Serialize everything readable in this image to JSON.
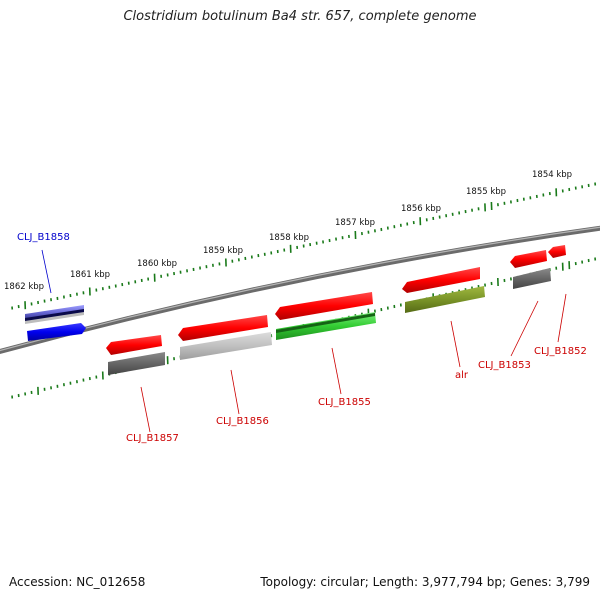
{
  "title": "Clostridium botulinum Ba4 str. 657, complete genome",
  "footer": {
    "accession": "Accession: NC_012658",
    "summary": "Topology: circular; Length: 3,977,794 bp; Genes: 3,799"
  },
  "scale_labels": [
    "1862 kbp",
    "1861 kbp",
    "1860 kbp",
    "1859 kbp",
    "1858 kbp",
    "1857 kbp",
    "1856 kbp",
    "1855 kbp",
    "1854 kbp"
  ],
  "genes": [
    {
      "label": "CLJ_B1858",
      "strand": "forward",
      "color": "#0000cc"
    },
    {
      "label": "CLJ_B1857",
      "strand": "reverse",
      "color": "#cc0000"
    },
    {
      "label": "CLJ_B1856",
      "strand": "reverse",
      "color": "#cc0000"
    },
    {
      "label": "CLJ_B1855",
      "strand": "reverse",
      "color": "#cc0000"
    },
    {
      "label": "alr",
      "strand": "reverse",
      "color": "#cc0000"
    },
    {
      "label": "CLJ_B1853",
      "strand": "reverse",
      "color": "#cc0000"
    },
    {
      "label": "CLJ_B1852",
      "strand": "reverse",
      "color": "#cc0000"
    }
  ]
}
